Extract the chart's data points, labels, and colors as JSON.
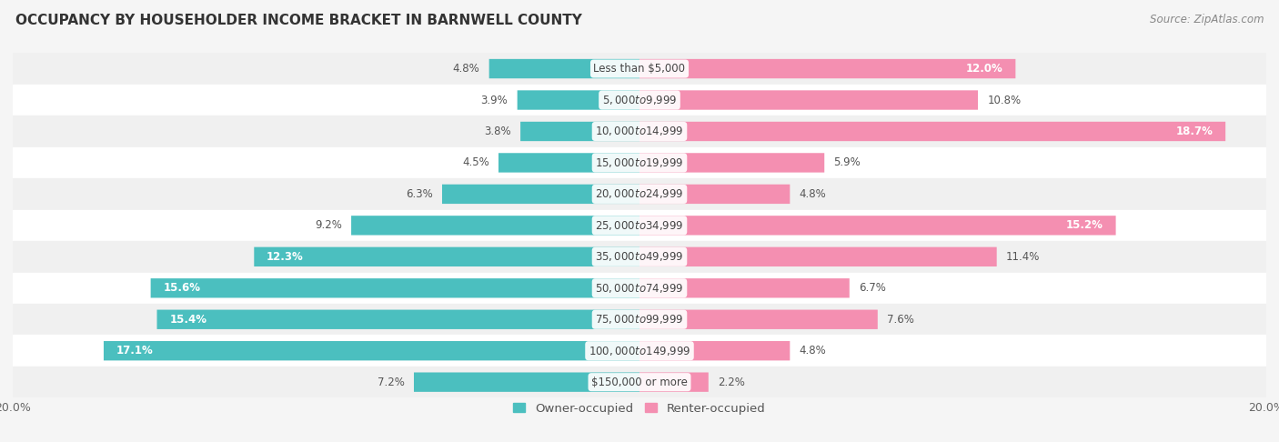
{
  "title": "OCCUPANCY BY HOUSEHOLDER INCOME BRACKET IN BARNWELL COUNTY",
  "source": "Source: ZipAtlas.com",
  "categories": [
    "Less than $5,000",
    "$5,000 to $9,999",
    "$10,000 to $14,999",
    "$15,000 to $19,999",
    "$20,000 to $24,999",
    "$25,000 to $34,999",
    "$35,000 to $49,999",
    "$50,000 to $74,999",
    "$75,000 to $99,999",
    "$100,000 to $149,999",
    "$150,000 or more"
  ],
  "owner_values": [
    4.8,
    3.9,
    3.8,
    4.5,
    6.3,
    9.2,
    12.3,
    15.6,
    15.4,
    17.1,
    7.2
  ],
  "renter_values": [
    12.0,
    10.8,
    18.7,
    5.9,
    4.8,
    15.2,
    11.4,
    6.7,
    7.6,
    4.8,
    2.2
  ],
  "owner_color": "#4BBFBF",
  "renter_color": "#F48FB1",
  "bar_height": 0.62,
  "xlim": 20.0,
  "background_color": "#f5f5f5",
  "row_bg_colors": [
    "#f0f0f0",
    "#ffffff"
  ],
  "title_fontsize": 11,
  "label_fontsize": 8.5,
  "source_fontsize": 8.5,
  "legend_fontsize": 9.5,
  "axis_label_fontsize": 9
}
